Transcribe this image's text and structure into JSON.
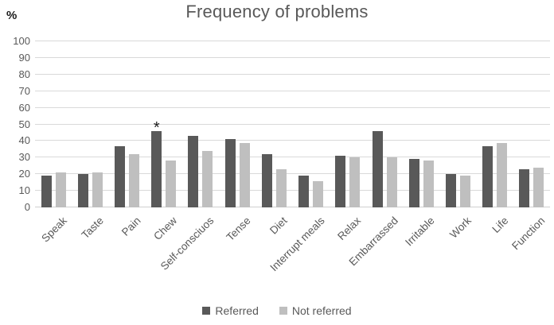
{
  "chart_data": {
    "type": "bar",
    "title": "Frequency of problems",
    "ylabel": "%",
    "xlabel": "",
    "ylim": [
      0,
      100
    ],
    "ytick_interval": 10,
    "yticks": [
      100,
      90,
      80,
      70,
      60,
      50,
      40,
      30,
      20,
      10,
      0
    ],
    "grid": "horizontal",
    "legend_position": "bottom",
    "categories": [
      "Speak",
      "Taste",
      "Pain",
      "Chew",
      "Self-consciuos",
      "Tense",
      "Diet",
      "Interrupt meals",
      "Relax",
      "Embarrassed",
      "Irritable",
      "Work",
      "Life",
      "Function"
    ],
    "series": [
      {
        "name": "Referred",
        "color": "#595959",
        "values": [
          19,
          20,
          37,
          46,
          43,
          41,
          32,
          19,
          31,
          46,
          29,
          20,
          37,
          23
        ]
      },
      {
        "name": "Not referred",
        "color": "#bfbfbf",
        "values": [
          21,
          21,
          32,
          28,
          34,
          39,
          23,
          16,
          30,
          30,
          28,
          19,
          39,
          24
        ]
      }
    ],
    "annotation": {
      "text": "*",
      "category": "Chew",
      "series": "Referred"
    }
  },
  "legend": {
    "items": [
      {
        "label": "Referred",
        "color": "#595959"
      },
      {
        "label": "Not referred",
        "color": "#bfbfbf"
      }
    ]
  },
  "colors": {
    "gridline": "#d9d9d9",
    "axis_text": "#595959",
    "title_text": "#595959"
  }
}
